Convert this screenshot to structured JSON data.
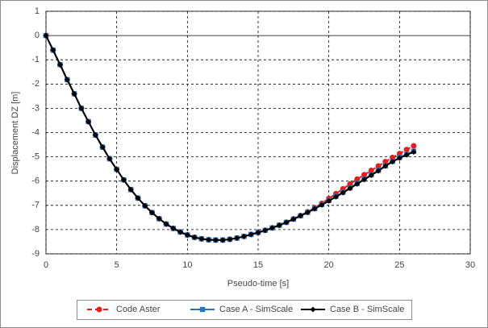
{
  "chart_data": {
    "type": "line",
    "x_label": "Pseudo-time [s]",
    "y_label": "Displacement DZ [m]",
    "x": [
      0,
      0.5,
      1,
      1.5,
      2,
      2.5,
      3,
      3.5,
      4,
      4.5,
      5,
      5.5,
      6,
      6.5,
      7,
      7.5,
      8,
      8.5,
      9,
      9.5,
      10,
      10.5,
      11,
      11.5,
      12,
      12.5,
      13,
      13.5,
      14,
      14.5,
      15,
      15.5,
      16,
      16.5,
      17,
      17.5,
      18,
      18.5,
      19,
      19.5,
      20,
      20.5,
      21,
      21.5,
      22,
      22.5,
      23,
      23.5,
      24,
      24.5,
      25,
      25.5,
      26
    ],
    "series": [
      {
        "name": "Code Aster",
        "color": "#e02020",
        "marker": "circle",
        "dashed": true,
        "values": [
          0,
          -0.6,
          -1.2,
          -1.82,
          -2.4,
          -3.0,
          -3.55,
          -4.1,
          -4.6,
          -5.08,
          -5.52,
          -5.95,
          -6.35,
          -6.7,
          -7.02,
          -7.3,
          -7.55,
          -7.77,
          -7.95,
          -8.1,
          -8.22,
          -8.32,
          -8.38,
          -8.42,
          -8.43,
          -8.43,
          -8.4,
          -8.35,
          -8.28,
          -8.2,
          -8.12,
          -8.03,
          -7.93,
          -7.82,
          -7.7,
          -7.56,
          -7.42,
          -7.27,
          -7.1,
          -6.92,
          -6.72,
          -6.52,
          -6.32,
          -6.12,
          -5.92,
          -5.74,
          -5.56,
          -5.38,
          -5.2,
          -5.03,
          -4.87,
          -4.7,
          -4.55
        ]
      },
      {
        "name": "Case A - SimScale",
        "color": "#2e75b6",
        "marker": "square",
        "dashed": false,
        "values": [
          0,
          -0.6,
          -1.2,
          -1.82,
          -2.4,
          -3.0,
          -3.55,
          -4.1,
          -4.6,
          -5.08,
          -5.52,
          -5.95,
          -6.35,
          -6.7,
          -7.02,
          -7.3,
          -7.55,
          -7.77,
          -7.95,
          -8.1,
          -8.22,
          -8.32,
          -8.38,
          -8.42,
          -8.43,
          -8.43,
          -8.4,
          -8.35,
          -8.28,
          -8.2,
          -8.12,
          -8.03,
          -7.93,
          -7.82,
          -7.7,
          -7.57,
          -7.43,
          -7.29,
          -7.14,
          -6.97,
          -6.8,
          -6.63,
          -6.46,
          -6.28,
          -6.1,
          -5.92,
          -5.74,
          -5.56,
          -5.37,
          -5.19,
          -5.03,
          -4.9,
          -4.77
        ]
      },
      {
        "name": "Case B - SimScale",
        "color": "#000000",
        "marker": "diamond",
        "dashed": false,
        "values": [
          0,
          -0.6,
          -1.2,
          -1.82,
          -2.4,
          -3.0,
          -3.55,
          -4.1,
          -4.6,
          -5.08,
          -5.52,
          -5.95,
          -6.35,
          -6.7,
          -7.02,
          -7.3,
          -7.55,
          -7.77,
          -7.95,
          -8.1,
          -8.22,
          -8.32,
          -8.38,
          -8.42,
          -8.43,
          -8.43,
          -8.4,
          -8.35,
          -8.28,
          -8.2,
          -8.12,
          -8.03,
          -7.93,
          -7.82,
          -7.7,
          -7.57,
          -7.43,
          -7.29,
          -7.14,
          -6.98,
          -6.82,
          -6.65,
          -6.48,
          -6.3,
          -6.12,
          -5.94,
          -5.76,
          -5.58,
          -5.38,
          -5.2,
          -5.05,
          -4.92,
          -4.8
        ]
      }
    ],
    "xlim": [
      0,
      30
    ],
    "xticks": [
      0,
      5,
      10,
      15,
      20,
      25,
      30
    ],
    "ylim": [
      -9,
      1
    ],
    "yticks": [
      -9,
      -8,
      -7,
      -6,
      -5,
      -4,
      -3,
      -2,
      -1,
      0,
      1
    ],
    "grid": true,
    "legend": "bottom"
  }
}
